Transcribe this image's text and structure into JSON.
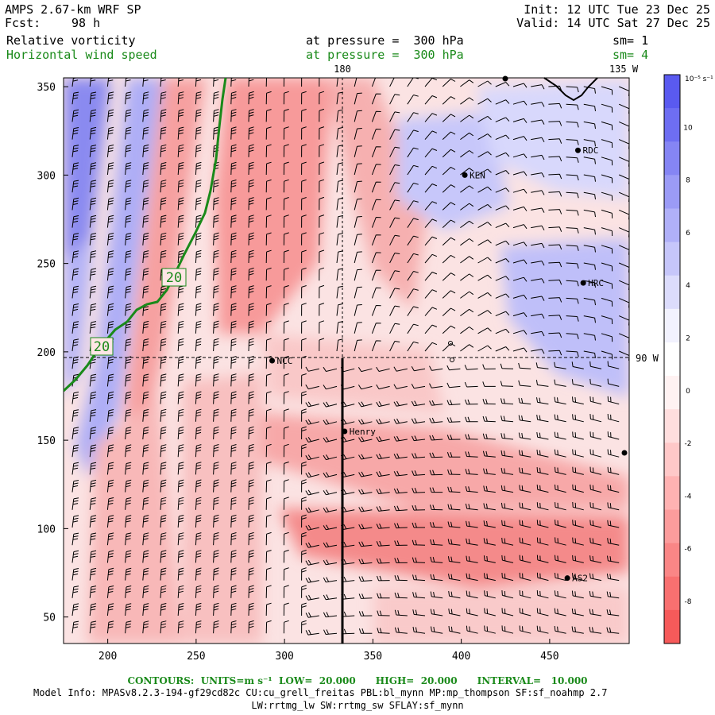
{
  "header": {
    "model": "AMPS 2.67-km WRF SP",
    "forecast_label": "Fcst:",
    "forecast_hours": "98 h",
    "init": "Init: 12 UTC Tue 23 Dec 25",
    "valid": "Valid: 14 UTC Sat 27 Dec 25"
  },
  "fields": [
    {
      "name": "Relative vorticity",
      "level": "at pressure =  300 hPa",
      "smoothing": "sm= 1",
      "color": "#000000"
    },
    {
      "name": "Horizontal wind speed",
      "level": "at pressure =  300 hPa",
      "smoothing": "sm= 4",
      "color": "#1a8a1a"
    }
  ],
  "map": {
    "x_ticks": [
      200,
      250,
      300,
      350,
      400,
      450
    ],
    "y_ticks": [
      50,
      100,
      150,
      200,
      250,
      300,
      350
    ],
    "x_range": [
      175,
      495
    ],
    "y_range": [
      35,
      355
    ],
    "meridian_labels": {
      "top_center": "180",
      "top_right": "135 W",
      "right": "90 W"
    },
    "stations": [
      {
        "name": "RDC",
        "x": 466,
        "y": 314
      },
      {
        "name": "KEN",
        "x": 402,
        "y": 300
      },
      {
        "name": "HRC",
        "x": 469,
        "y": 239
      },
      {
        "name": "NCC",
        "x": 293,
        "y": 195
      },
      {
        "name": "Henry",
        "x": 334,
        "y": 155
      },
      {
        "name": "AS2",
        "x": 460,
        "y": 72
      }
    ],
    "contour_labels": [
      "20",
      "20"
    ],
    "cross_section_x": 334
  },
  "colorbar": {
    "units": "10⁻⁵ s⁻¹",
    "ticks": [
      10,
      8,
      6,
      4,
      2,
      0,
      -2,
      -4,
      -6,
      -8
    ],
    "colors": [
      "#5a5af0",
      "#6e6ef2",
      "#8585f4",
      "#9b9bf6",
      "#b0b0f8",
      "#c6c6fa",
      "#dcdcfc",
      "#f2f2fe",
      "#ffffff",
      "#fff2f2",
      "#ffdede",
      "#ffc8c8",
      "#ffb2b2",
      "#fc9c9c",
      "#fa8686",
      "#f87070",
      "#f65a5a"
    ]
  },
  "footer": {
    "contours": "CONTOURS:  UNITS=m s⁻¹  LOW=  20.000      HIGH=  20.000      INTERVAL=   10.000",
    "model_info": "Model Info: MPASv8.2.3-194-gf29cd82c CU:cu_grell_freitas PBL:bl_mynn MP:mp_thompson SF:sf_noahmp 2.7",
    "model_info2": "LW:rrtmg_lw SW:rrtmg_sw SFLAY:sf_mynn"
  }
}
